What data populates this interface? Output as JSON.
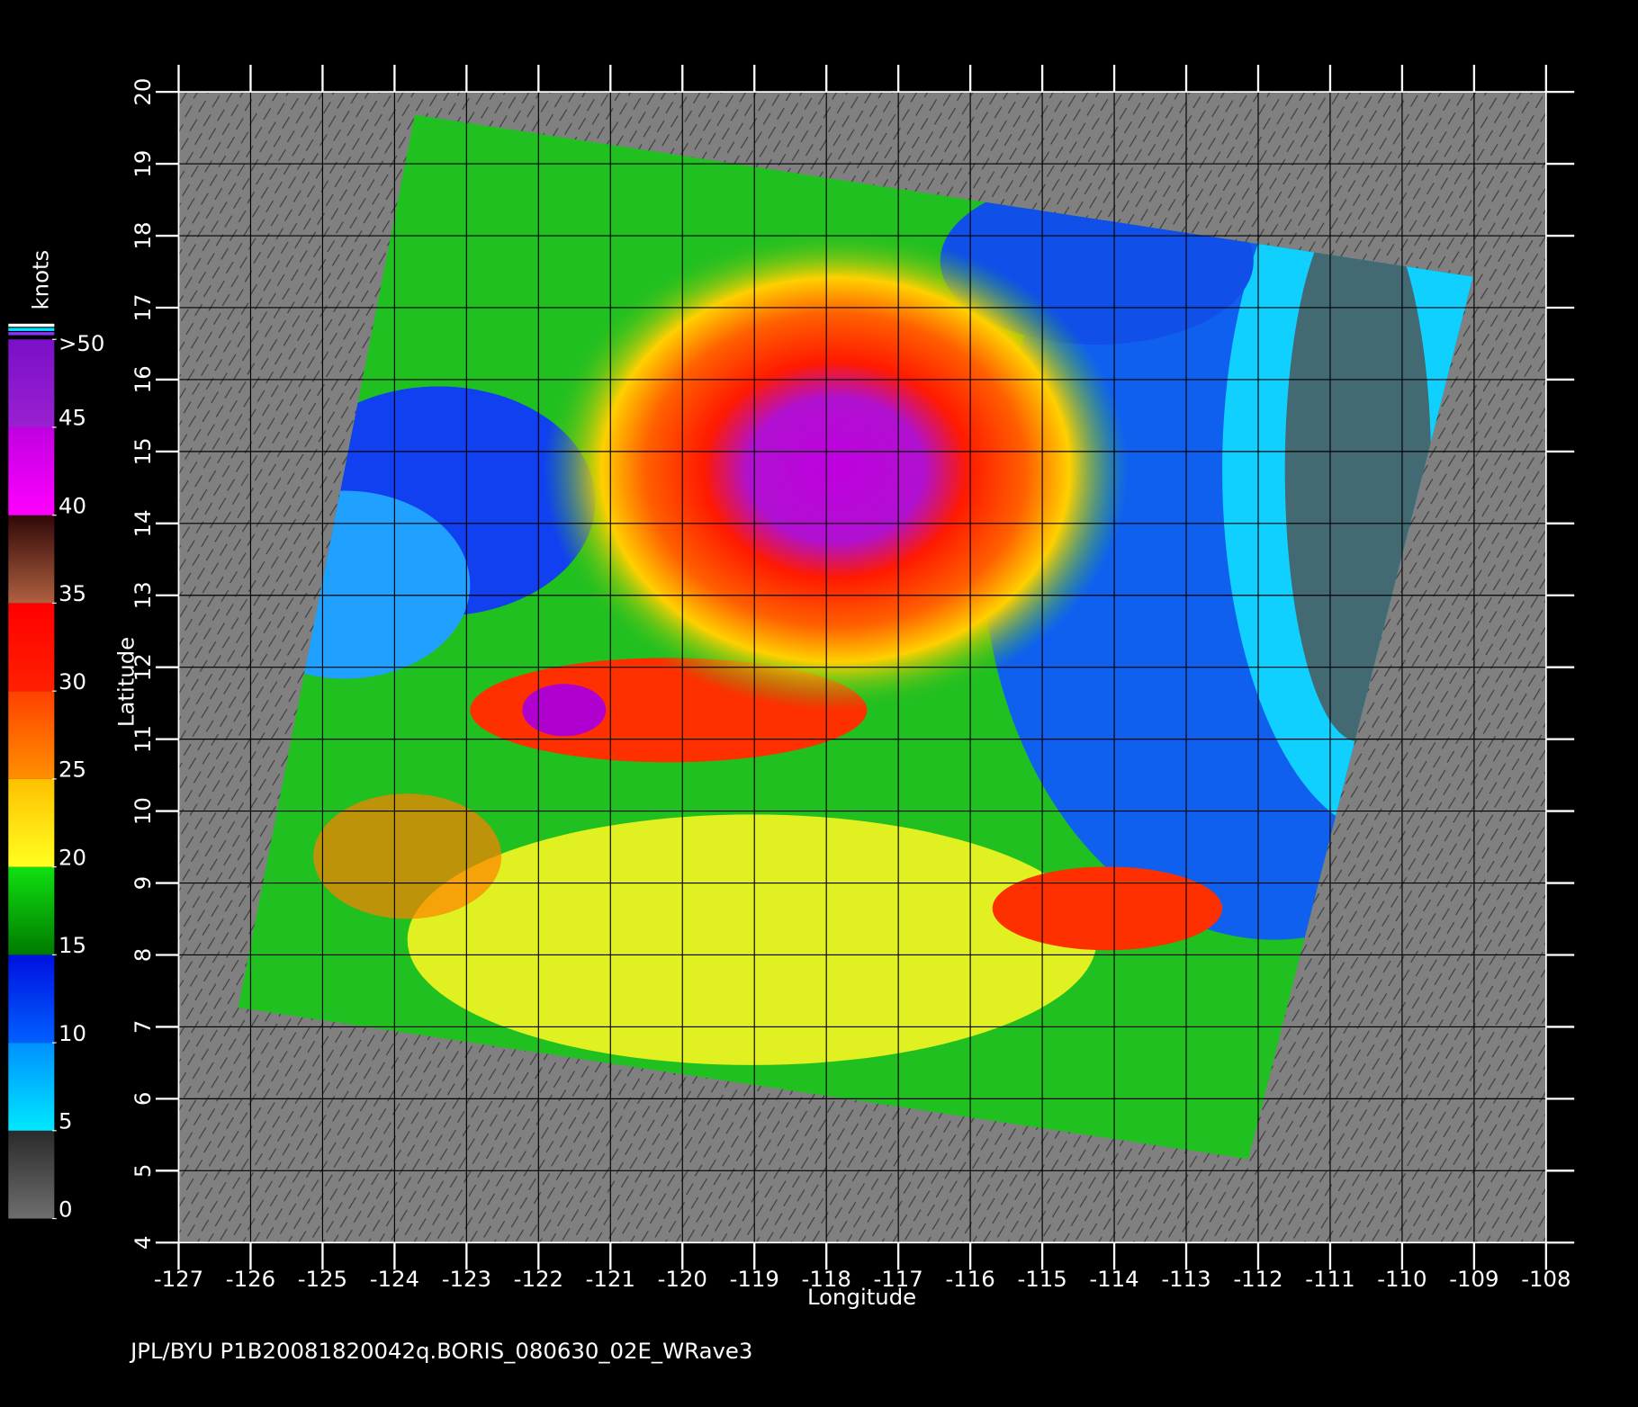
{
  "chart_data": {
    "type": "map",
    "footer": "JPL/BYU  P1B20081820042q.BORIS_080630_02E_WRave3",
    "x_label": "Longitude",
    "y_label": "Latitude",
    "xlim": [
      -127,
      -108
    ],
    "ylim": [
      4,
      20
    ],
    "xticks": [
      -127,
      -126,
      -125,
      -124,
      -123,
      -122,
      -121,
      -120,
      -119,
      -118,
      -117,
      -116,
      -115,
      -114,
      -113,
      -112,
      -111,
      -110,
      -109,
      -108
    ],
    "yticks": [
      4,
      5,
      6,
      7,
      8,
      9,
      10,
      11,
      12,
      13,
      14,
      15,
      16,
      17,
      18,
      19,
      20
    ],
    "grid": true,
    "colorbar": {
      "label": "knots",
      "lim": [
        0,
        50
      ],
      "ticks": [
        0,
        5,
        10,
        15,
        20,
        25,
        30,
        35,
        40,
        45,
        {
          "value": 50,
          "label": ">50"
        }
      ],
      "colors": [
        [
          "#6e6e6e",
          "#2a2a2a"
        ],
        [
          "#00e8ff",
          "#0090ff"
        ],
        [
          "#0060ff",
          "#0010e0"
        ],
        [
          "#007a00",
          "#10e010"
        ],
        [
          "#ffff20",
          "#ffc000"
        ],
        [
          "#ff9000",
          "#ff4000"
        ],
        [
          "#ff2000",
          "#ff0000"
        ],
        [
          "#b06040",
          "#300808"
        ],
        [
          "#ff00ff",
          "#c000e0"
        ],
        [
          "#9a20d0",
          "#7a10c8"
        ]
      ]
    }
  }
}
